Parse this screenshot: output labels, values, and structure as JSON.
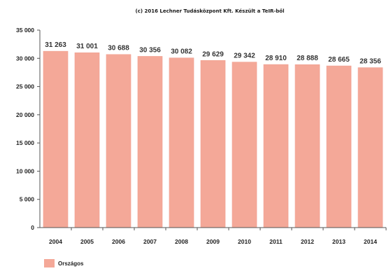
{
  "chart_data": {
    "type": "bar",
    "title": "(c) 2016 Lechner Tudásközpont Kft. Készült a TeIR-ből",
    "categories": [
      "2004",
      "2005",
      "2006",
      "2007",
      "2008",
      "2009",
      "2010",
      "2011",
      "2012",
      "2013",
      "2014"
    ],
    "value_labels": [
      "31 263",
      "31 001",
      "30 688",
      "30 356",
      "30 082",
      "29 629",
      "29 342",
      "28 910",
      "28 888",
      "28 665",
      "28 356"
    ],
    "series": [
      {
        "name": "Országos",
        "values": [
          31263,
          31001,
          30688,
          30356,
          30082,
          29629,
          29342,
          28910,
          28888,
          28665,
          28356
        ]
      }
    ],
    "ylim": [
      0,
      35000
    ],
    "yticks": [
      0,
      5000,
      10000,
      15000,
      20000,
      25000,
      30000,
      35000
    ],
    "ytick_labels": [
      "0",
      "5 000",
      "10 000",
      "15 000",
      "20 000",
      "25 000",
      "30 000",
      "35 000"
    ],
    "xlabel": "",
    "ylabel": "",
    "grid": false,
    "legend_position": "bottom-left",
    "colors": {
      "bar_fill": "#f4a898",
      "bar_stroke": "#f0a090",
      "axis": "#555555"
    }
  }
}
